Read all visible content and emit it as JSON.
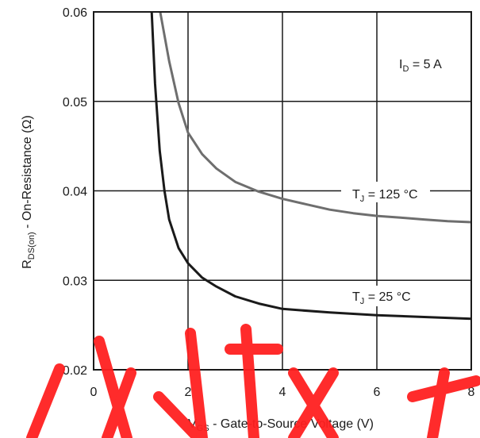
{
  "chart_data": {
    "type": "line",
    "x_axis": {
      "label_main": "V",
      "label_sub": "GS",
      "label_rest": " - Gate-to-Source Voltage (V)",
      "range": [
        0,
        8
      ],
      "ticks": [
        0,
        2,
        4,
        6,
        8
      ],
      "tick_labels": [
        "0",
        "2",
        "4",
        "6",
        "8"
      ]
    },
    "y_axis": {
      "label_main": "R",
      "label_sub": "DS(on)",
      "label_rest": " - On-Resistance (Ω)",
      "range": [
        0.02,
        0.06
      ],
      "ticks": [
        0.02,
        0.03,
        0.04,
        0.05,
        0.06
      ],
      "tick_labels": [
        "0.02",
        "0.03",
        "0.04",
        "0.05",
        "0.06"
      ]
    },
    "grid": true,
    "condition": {
      "main": "I",
      "sub": "D",
      "rest": " = 5 A"
    },
    "series": [
      {
        "name": "TJ = 125 °C",
        "label_main": "T",
        "label_sub": "J",
        "label_rest": " = 125 °C",
        "color": "#6e6e6e",
        "points": [
          [
            1.41,
            0.06
          ],
          [
            1.6,
            0.0545
          ],
          [
            1.8,
            0.0498
          ],
          [
            2.0,
            0.0465
          ],
          [
            2.3,
            0.0441
          ],
          [
            2.6,
            0.0425
          ],
          [
            3.0,
            0.041
          ],
          [
            3.5,
            0.0399
          ],
          [
            4.0,
            0.0391
          ],
          [
            4.5,
            0.0385
          ],
          [
            5.0,
            0.0379
          ],
          [
            5.5,
            0.0375
          ],
          [
            6.0,
            0.0372
          ],
          [
            6.5,
            0.037
          ],
          [
            7.0,
            0.0368
          ],
          [
            7.5,
            0.0366
          ],
          [
            8.0,
            0.0365
          ]
        ]
      },
      {
        "name": "TJ = 25 °C",
        "label_main": "T",
        "label_sub": "J",
        "label_rest": " = 25 °C",
        "color": "#1a1a1a",
        "points": [
          [
            1.23,
            0.06
          ],
          [
            1.3,
            0.052
          ],
          [
            1.4,
            0.0445
          ],
          [
            1.5,
            0.04
          ],
          [
            1.6,
            0.0368
          ],
          [
            1.8,
            0.0336
          ],
          [
            2.0,
            0.0319
          ],
          [
            2.3,
            0.0303
          ],
          [
            2.6,
            0.0293
          ],
          [
            3.0,
            0.0282
          ],
          [
            3.5,
            0.0274
          ],
          [
            4.0,
            0.0268
          ],
          [
            5.0,
            0.0264
          ],
          [
            6.0,
            0.0261
          ],
          [
            7.0,
            0.0259
          ],
          [
            8.0,
            0.0257
          ]
        ]
      }
    ]
  },
  "watermark": {
    "text": "小技术",
    "color": "#ff2020"
  }
}
